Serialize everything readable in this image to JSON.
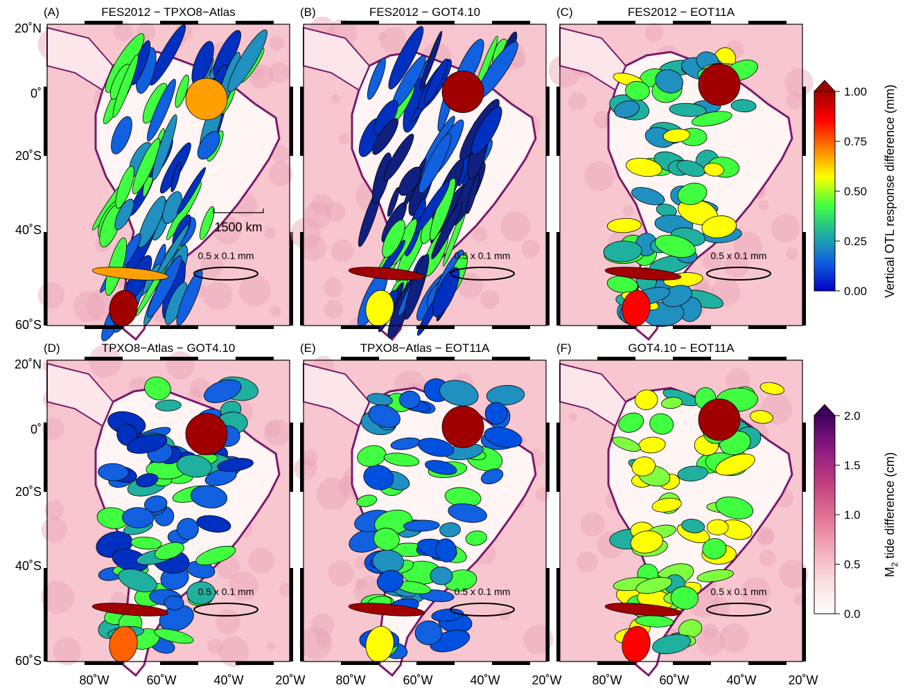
{
  "panels": [
    {
      "id": "A",
      "letter": "(A)",
      "title": "FES2012 − TPXO8−Atlas"
    },
    {
      "id": "B",
      "letter": "(B)",
      "title": "FES2012 − GOT4.10"
    },
    {
      "id": "C",
      "letter": "(C)",
      "title": "FES2012 − EOT11A"
    },
    {
      "id": "D",
      "letter": "(D)",
      "title": "TPXO8−Atlas − GOT4.10"
    },
    {
      "id": "E",
      "letter": "(E)",
      "title": "TPXO8−Atlas − EOT11A"
    },
    {
      "id": "F",
      "letter": "(F)",
      "title": "GOT4.10 − EOT11A"
    }
  ],
  "lat_labels": [
    "20˚N",
    "0˚",
    "20˚S",
    "40˚S",
    "60˚S"
  ],
  "lon_labels": [
    "80˚W",
    "60˚W",
    "40˚W",
    "20˚W"
  ],
  "scale_bar_label": "1500 km",
  "reference_ellipse_label": "0.5 x 0.1 mm",
  "colorbar_otl": {
    "label": "Vertical OTL response difference (mm)",
    "ticks": [
      "1.00",
      "0.75",
      "0.50",
      "0.25",
      "0.00"
    ],
    "colors": [
      "#a00000",
      "#ff0000",
      "#ff8000",
      "#ffff00",
      "#40ff40",
      "#20b0a0",
      "#1060e0",
      "#0000c0"
    ]
  },
  "colorbar_tide": {
    "label_prefix": "M",
    "label_sub": "2",
    "label_suffix": " tide difference (cm)",
    "ticks": [
      "2.0",
      "1.5",
      "1.0",
      "0.5",
      "0.0"
    ],
    "colors": [
      "#400060",
      "#8a1a80",
      "#c03c80",
      "#e07090",
      "#f2a8b8",
      "#fbdde0",
      "#ffffff"
    ]
  },
  "colors": {
    "ocean": "#f7c6cf",
    "land": "#fff5f5",
    "coast": "#7a1a6a"
  }
}
